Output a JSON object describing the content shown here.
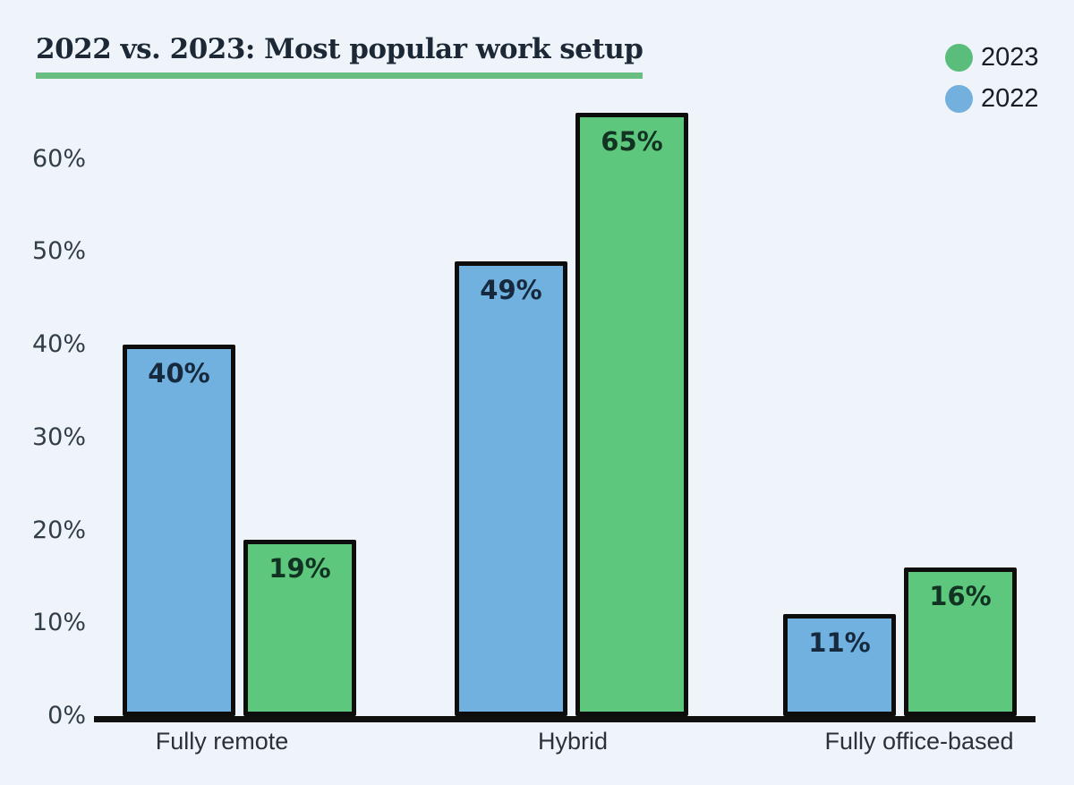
{
  "page": {
    "background": "#eef4f9"
  },
  "header": {
    "title": "2022 vs. 2023: Most popular work setup",
    "underline_color": "#68bd81"
  },
  "legend": {
    "position": "top-right",
    "items": [
      {
        "label": "2023",
        "color": "#5bbd7c"
      },
      {
        "label": "2022",
        "color": "#74b0dd"
      }
    ]
  },
  "chart_data": {
    "type": "bar",
    "title": "2022 vs. 2023: Most popular work setup",
    "categories": [
      "Fully remote",
      "Hybrid",
      "Fully office-based"
    ],
    "series": [
      {
        "name": "2022",
        "color": "#71b1e0",
        "label_color": "#16293d",
        "values": [
          40,
          49,
          11
        ],
        "labels": [
          "40%",
          "49%",
          "11%"
        ]
      },
      {
        "name": "2023",
        "color": "#5ec77e",
        "label_color": "#123322",
        "values": [
          19,
          65,
          16
        ],
        "labels": [
          "19%",
          "65%",
          "16%"
        ]
      }
    ],
    "yticks": [
      "0%",
      "10%",
      "20%",
      "30%",
      "40%",
      "50%",
      "60%"
    ],
    "ytick_values": [
      0,
      10,
      20,
      30,
      40,
      50,
      60
    ],
    "ylim": [
      0,
      67
    ],
    "xlabel": "",
    "ylabel": "",
    "grid": false,
    "bar_border_color": "#0d0d0d",
    "axis_color": "#101010",
    "legend_position": "top-right"
  }
}
